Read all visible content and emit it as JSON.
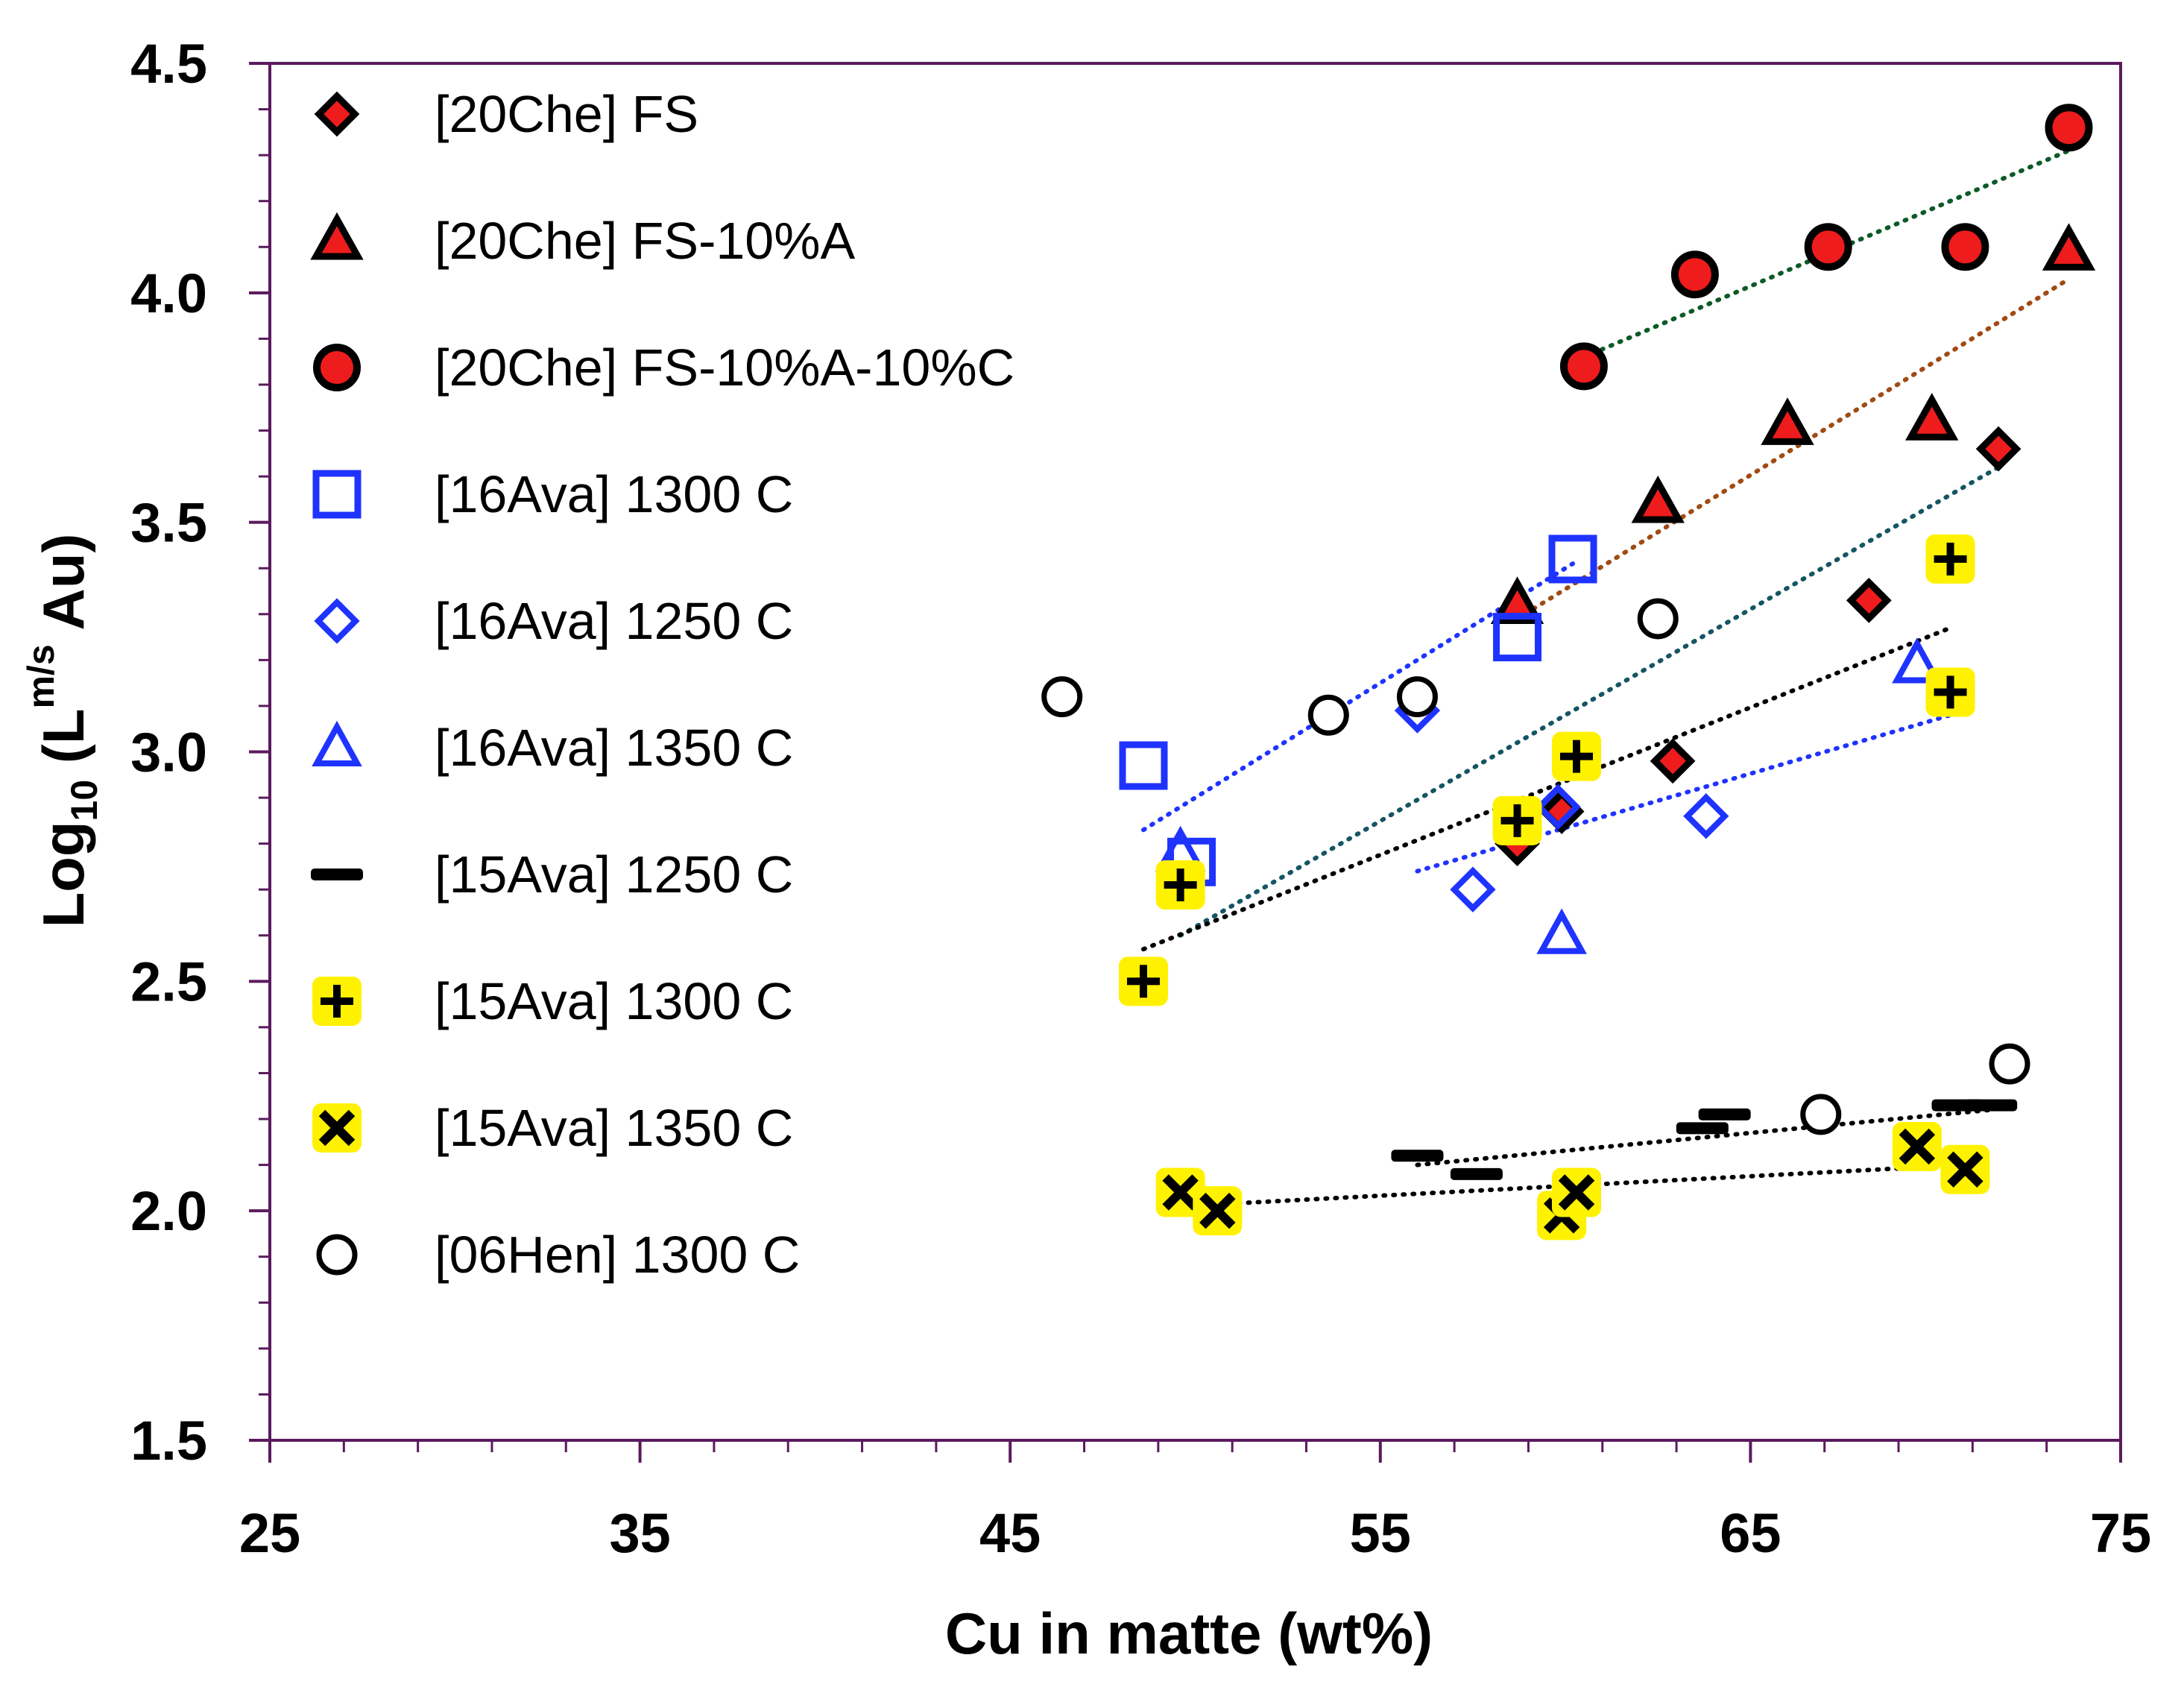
{
  "chart_data": {
    "type": "scatter",
    "title": "",
    "xlabel": "Cu in matte (wt%)",
    "ylabel": {
      "base": "Log",
      "sub": "10",
      "open": " (L",
      "sup": "m/s",
      "close": " Au)"
    },
    "xlim": [
      25,
      75
    ],
    "ylim": [
      1.5,
      4.5
    ],
    "xticks": [
      "25",
      "35",
      "45",
      "55",
      "65",
      "75"
    ],
    "yticks": [
      "1.5",
      "2.0",
      "2.5",
      "3.0",
      "3.5",
      "4.0",
      "4.5"
    ],
    "grid": false,
    "legend_position": "top-left",
    "colors": {
      "axis": "#5b1a5e",
      "red": "#ee1c1c",
      "blue": "#1f33ff",
      "yellow": "#fff200",
      "black": "#000000"
    },
    "series": [
      {
        "name": "[20Che] FS",
        "marker": "diamond-red",
        "x": [
          58.7,
          59.9,
          62.9,
          68.2,
          71.7
        ],
        "y": [
          2.8,
          2.87,
          2.98,
          3.33,
          3.66
        ]
      },
      {
        "name": "[20Che] FS-10%A",
        "marker": "triangle-red",
        "x": [
          58.7,
          62.5,
          66.0,
          69.9,
          73.6
        ],
        "y": [
          3.32,
          3.54,
          3.71,
          3.72,
          4.09
        ]
      },
      {
        "name": "[20Che] FS-10%A-10%C",
        "marker": "circle-red",
        "x": [
          60.5,
          63.5,
          67.1,
          70.8,
          73.6
        ],
        "y": [
          3.84,
          4.04,
          4.1,
          4.1,
          4.36
        ]
      },
      {
        "name": "[16Ava] 1300 C",
        "marker": "square-open-blue",
        "x": [
          48.6,
          49.9,
          58.7,
          60.2
        ],
        "y": [
          2.97,
          2.76,
          3.25,
          3.42
        ]
      },
      {
        "name": "[16Ava] 1250 C",
        "marker": "diamond-open-blue",
        "x": [
          56.0,
          57.5,
          59.8,
          63.8
        ],
        "y": [
          3.09,
          2.7,
          2.88,
          2.86
        ]
      },
      {
        "name": "[16Ava] 1350 C",
        "marker": "triangle-open-blue",
        "x": [
          49.6,
          59.9,
          69.5
        ],
        "y": [
          2.78,
          2.6,
          3.19
        ]
      },
      {
        "name": "[15Ava] 1250 C",
        "marker": "dash-black",
        "x": [
          56.0,
          57.6,
          63.7,
          64.3,
          70.6,
          71.5
        ],
        "y": [
          2.12,
          2.08,
          2.18,
          2.21,
          2.23,
          2.23
        ]
      },
      {
        "name": "[15Ava] 1300 C",
        "marker": "plus-yellow",
        "x": [
          48.6,
          49.6,
          58.7,
          60.3,
          70.4,
          70.4
        ],
        "y": [
          2.5,
          2.71,
          2.85,
          2.99,
          3.42,
          3.13
        ]
      },
      {
        "name": "[15Ava] 1350 C",
        "marker": "x-yellow",
        "x": [
          49.6,
          50.6,
          59.9,
          60.3,
          69.5,
          70.8
        ],
        "y": [
          2.04,
          2.0,
          1.99,
          2.04,
          2.14,
          2.09
        ]
      },
      {
        "name": "[06Hen] 1300 C",
        "marker": "circle-open-black",
        "x": [
          46.4,
          53.6,
          56.0,
          62.5,
          66.9,
          72.0
        ],
        "y": [
          3.12,
          3.08,
          3.12,
          3.29,
          2.21,
          2.32
        ]
      }
    ],
    "trendlines": [
      {
        "color": "#0b5a27",
        "x": [
          60.5,
          73.6
        ],
        "y": [
          3.86,
          4.31
        ]
      },
      {
        "color": "#a04b14",
        "x": [
          58.7,
          73.6
        ],
        "y": [
          3.29,
          4.03
        ]
      },
      {
        "color": "#1f33ff",
        "x": [
          48.6,
          60.2
        ],
        "y": [
          2.83,
          3.41
        ]
      },
      {
        "color": "#155563",
        "x": [
          49.6,
          71.7
        ],
        "y": [
          2.6,
          3.62
        ]
      },
      {
        "color": "#000000",
        "x": [
          48.6,
          70.4
        ],
        "y": [
          2.57,
          3.27
        ]
      },
      {
        "color": "#1f33ff",
        "x": [
          56.0,
          70.4
        ],
        "y": [
          2.74,
          3.08
        ]
      },
      {
        "color": "#000000",
        "x": [
          56.0,
          71.5
        ],
        "y": [
          2.1,
          2.22
        ]
      },
      {
        "color": "#000000",
        "x": [
          49.6,
          70.8
        ],
        "y": [
          2.01,
          2.1
        ]
      }
    ]
  }
}
